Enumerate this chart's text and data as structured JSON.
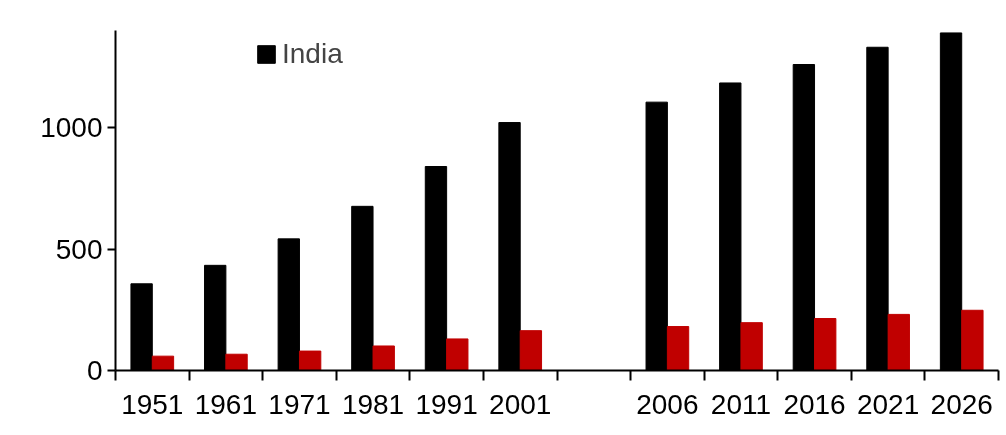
{
  "chart_data": {
    "type": "bar",
    "categories": [
      "1951",
      "1961",
      "1971",
      "1981",
      "1991",
      "2001",
      null,
      "2006",
      "2011",
      "2016",
      "2021",
      "2026"
    ],
    "series": [
      {
        "name": "India",
        "color": "#000000",
        "values": [
          357,
          433,
          542,
          676,
          840,
          1021,
          null,
          1105,
          1184,
          1260,
          1331,
          1390
        ]
      },
      {
        "color": "#c00000",
        "values": [
          59,
          67,
          80,
          101,
          130,
          164,
          null,
          181,
          197,
          214,
          231,
          248
        ]
      }
    ],
    "ylim": [
      0,
      1400
    ],
    "yticks": [
      0,
      500,
      1000
    ],
    "grid": false,
    "legend": "top left"
  }
}
